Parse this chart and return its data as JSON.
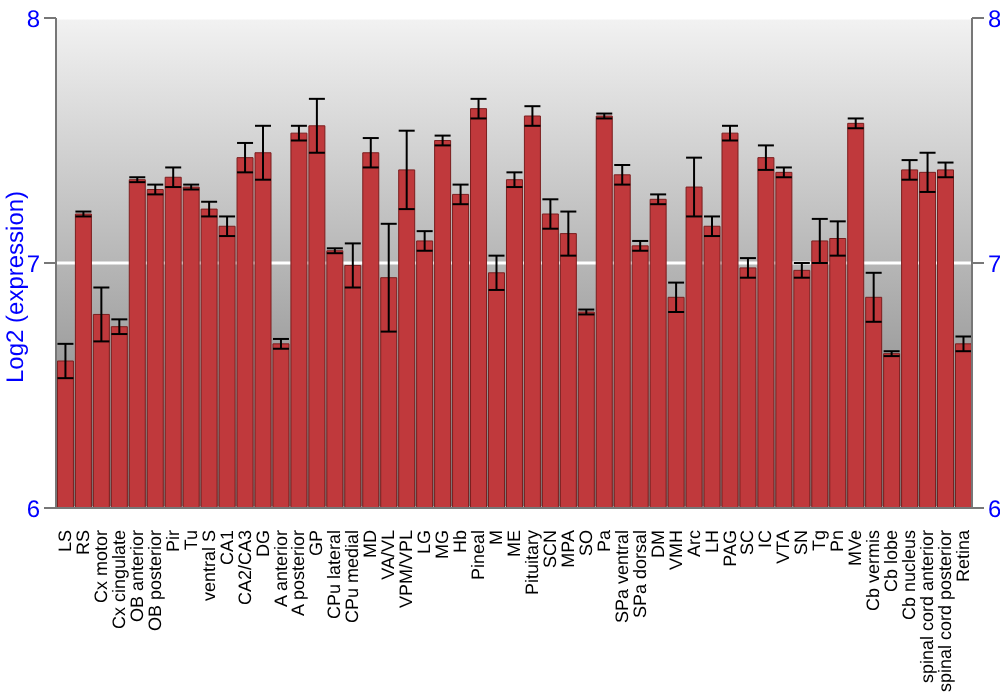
{
  "chart_data": {
    "type": "bar",
    "ylabel": "Log2 (expression)",
    "categories": [
      "LS",
      "RS",
      "Cx motor",
      "Cx cingulate",
      "OB anterior",
      "OB posterior",
      "Pir",
      "Tu",
      "ventral S",
      "CA1",
      "CA2/CA3",
      "DG",
      "A anterior",
      "A posterior",
      "GP",
      "CPu lateral",
      "CPu medial",
      "MD",
      "VA/VL",
      "VPM/VPL",
      "LG",
      "MG",
      "Hb",
      "Pineal",
      "M",
      "ME",
      "Pituitary",
      "SCN",
      "MPA",
      "SO",
      "Pa",
      "SPa ventral",
      "SPa dorsal",
      "DM",
      "VMH",
      "Arc",
      "LH",
      "PAG",
      "SC",
      "IC",
      "VTA",
      "SN",
      "Tg",
      "Pn",
      "MVe",
      "Cb vermis",
      "Cb lobe",
      "Cb nucleus",
      "spinal cord anterior",
      "spinal cord posterior",
      "Retina"
    ],
    "values": [
      6.6,
      7.2,
      6.79,
      6.74,
      7.34,
      7.3,
      7.35,
      7.31,
      7.22,
      7.15,
      7.43,
      7.45,
      6.67,
      7.53,
      7.56,
      7.05,
      6.99,
      7.45,
      6.94,
      7.38,
      7.09,
      7.5,
      7.28,
      7.63,
      6.96,
      7.34,
      7.6,
      7.2,
      7.12,
      6.8,
      7.6,
      7.36,
      7.07,
      7.26,
      6.86,
      7.31,
      7.15,
      7.53,
      6.98,
      7.43,
      7.37,
      6.97,
      7.09,
      7.1,
      7.57,
      6.86,
      6.63,
      7.38,
      7.37,
      7.38,
      6.67
    ],
    "errors": [
      0.07,
      0.01,
      0.11,
      0.03,
      0.01,
      0.02,
      0.04,
      0.01,
      0.03,
      0.04,
      0.06,
      0.11,
      0.02,
      0.03,
      0.11,
      0.01,
      0.09,
      0.06,
      0.22,
      0.16,
      0.04,
      0.02,
      0.04,
      0.04,
      0.07,
      0.03,
      0.04,
      0.06,
      0.09,
      0.01,
      0.01,
      0.04,
      0.02,
      0.02,
      0.06,
      0.12,
      0.04,
      0.03,
      0.04,
      0.05,
      0.02,
      0.03,
      0.09,
      0.07,
      0.02,
      0.1,
      0.01,
      0.04,
      0.08,
      0.03,
      0.03
    ],
    "color": "#c0393c",
    "ylim": [
      6,
      8
    ],
    "yticks": [
      6,
      7,
      8
    ],
    "y2lim": [
      6,
      8
    ],
    "y2ticks": [
      6,
      7,
      8
    ],
    "grid": "y"
  }
}
